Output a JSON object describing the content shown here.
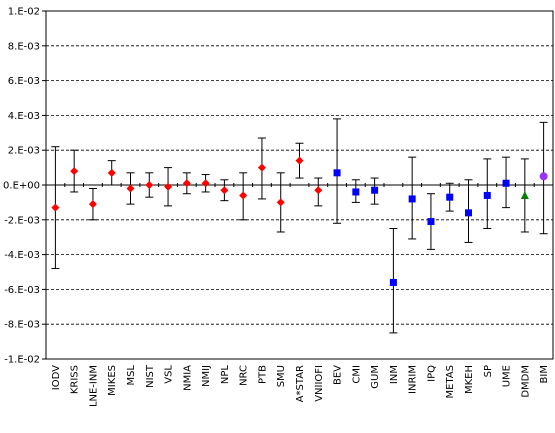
{
  "chart_data": {
    "type": "scatter",
    "title": "",
    "xlabel": "",
    "ylabel": "",
    "ylim": [
      -0.01,
      0.01
    ],
    "y_ticks": [
      -0.01,
      -0.008,
      -0.006,
      -0.004,
      -0.002,
      0,
      0.002,
      0.004,
      0.006,
      0.008,
      0.01
    ],
    "y_tick_labels": [
      "-1.E-02",
      "-8.E-03",
      "-6.E-03",
      "-4.E-03",
      "-2.E-03",
      "0.E+00",
      "2.E-03",
      "4.E-03",
      "6.E-03",
      "8.E-03",
      "1.E-02"
    ],
    "grid": "horizontal dashed",
    "legend": "none",
    "marker_colors": {
      "red": "#ff0000",
      "blue": "#0000ff",
      "green": "#008000",
      "purple": "#9933ff"
    },
    "categories": [
      "IODV",
      "KRISS",
      "LNE-INM",
      "MIKES",
      "MSL",
      "NIST",
      "VSL",
      "NMIA",
      "NMIJ",
      "NPL",
      "NRC",
      "PTB",
      "SMU",
      "A*STAR",
      "VNIIOFI",
      "BEV",
      "CMI",
      "GUM",
      "INM",
      "INRIM",
      "IPQ",
      "METAS",
      "MKEH",
      "SP",
      "UME",
      "DMDM",
      "BIM"
    ],
    "points": [
      {
        "label": "IODV",
        "y": -0.0013,
        "err_low": -0.0048,
        "err_high": 0.0022,
        "marker": "diamond",
        "color": "#ff0000"
      },
      {
        "label": "KRISS",
        "y": 0.0008,
        "err_low": -0.0004,
        "err_high": 0.002,
        "marker": "diamond",
        "color": "#ff0000"
      },
      {
        "label": "LNE-INM",
        "y": -0.0011,
        "err_low": -0.002,
        "err_high": -0.0002,
        "marker": "diamond",
        "color": "#ff0000"
      },
      {
        "label": "MIKES",
        "y": 0.0007,
        "err_low": 0.0,
        "err_high": 0.0014,
        "marker": "diamond",
        "color": "#ff0000"
      },
      {
        "label": "MSL",
        "y": -0.0002,
        "err_low": -0.0011,
        "err_high": 0.0007,
        "marker": "diamond",
        "color": "#ff0000"
      },
      {
        "label": "NIST",
        "y": 0.0,
        "err_low": -0.0007,
        "err_high": 0.0007,
        "marker": "diamond",
        "color": "#ff0000"
      },
      {
        "label": "VSL",
        "y": -0.0001,
        "err_low": -0.0012,
        "err_high": 0.001,
        "marker": "diamond",
        "color": "#ff0000"
      },
      {
        "label": "NMIA",
        "y": 0.0001,
        "err_low": -0.0005,
        "err_high": 0.0007,
        "marker": "diamond",
        "color": "#ff0000"
      },
      {
        "label": "NMIJ",
        "y": 0.0001,
        "err_low": -0.0004,
        "err_high": 0.0006,
        "marker": "diamond",
        "color": "#ff0000"
      },
      {
        "label": "NPL",
        "y": -0.0003,
        "err_low": -0.0009,
        "err_high": 0.0003,
        "marker": "diamond",
        "color": "#ff0000"
      },
      {
        "label": "NRC",
        "y": -0.0006,
        "err_low": -0.002,
        "err_high": 0.0007,
        "marker": "diamond",
        "color": "#ff0000"
      },
      {
        "label": "PTB",
        "y": 0.001,
        "err_low": -0.0008,
        "err_high": 0.0027,
        "marker": "diamond",
        "color": "#ff0000"
      },
      {
        "label": "SMU",
        "y": -0.001,
        "err_low": -0.0027,
        "err_high": 0.0007,
        "marker": "diamond",
        "color": "#ff0000"
      },
      {
        "label": "A*STAR",
        "y": 0.0014,
        "err_low": 0.0004,
        "err_high": 0.0024,
        "marker": "diamond",
        "color": "#ff0000"
      },
      {
        "label": "VNIIOFI",
        "y": -0.0003,
        "err_low": -0.0012,
        "err_high": 0.0004,
        "marker": "diamond",
        "color": "#ff0000"
      },
      {
        "label": "BEV",
        "y": 0.0007,
        "err_low": -0.0022,
        "err_high": 0.0038,
        "marker": "square",
        "color": "#0000ff"
      },
      {
        "label": "CMI",
        "y": -0.0004,
        "err_low": -0.001,
        "err_high": 0.0003,
        "marker": "square",
        "color": "#0000ff"
      },
      {
        "label": "GUM",
        "y": -0.0003,
        "err_low": -0.0011,
        "err_high": 0.0004,
        "marker": "square",
        "color": "#0000ff"
      },
      {
        "label": "INM",
        "y": -0.0056,
        "err_low": -0.0085,
        "err_high": -0.0025,
        "marker": "square",
        "color": "#0000ff"
      },
      {
        "label": "INRIM",
        "y": -0.0008,
        "err_low": -0.0031,
        "err_high": 0.0016,
        "marker": "square",
        "color": "#0000ff"
      },
      {
        "label": "IPQ",
        "y": -0.0021,
        "err_low": -0.0037,
        "err_high": -0.0005,
        "marker": "square",
        "color": "#0000ff"
      },
      {
        "label": "METAS",
        "y": -0.0007,
        "err_low": -0.0015,
        "err_high": 0.0001,
        "marker": "square",
        "color": "#0000ff"
      },
      {
        "label": "MKEH",
        "y": -0.0016,
        "err_low": -0.0033,
        "err_high": 0.0003,
        "marker": "square",
        "color": "#0000ff"
      },
      {
        "label": "SP",
        "y": -0.0006,
        "err_low": -0.0025,
        "err_high": 0.0015,
        "marker": "square",
        "color": "#0000ff"
      },
      {
        "label": "UME",
        "y": 0.0001,
        "err_low": -0.0013,
        "err_high": 0.0016,
        "marker": "square",
        "color": "#0000ff"
      },
      {
        "label": "DMDM",
        "y": -0.0006,
        "err_low": -0.0027,
        "err_high": 0.0015,
        "marker": "triangle",
        "color": "#008000"
      },
      {
        "label": "BIM",
        "y": 0.0005,
        "err_low": -0.0028,
        "err_high": 0.0036,
        "marker": "circle",
        "color": "#9933ff"
      }
    ]
  }
}
